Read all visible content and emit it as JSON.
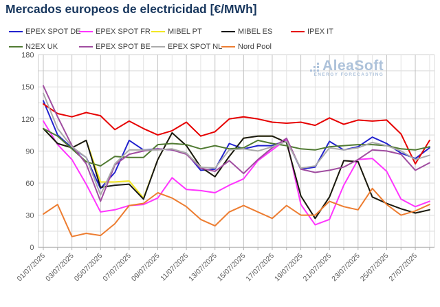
{
  "title": "Mercados europeos de electricidad [€/MWh]",
  "watermark": {
    "brand": "AleaSoft",
    "tagline": "ENERGY FORECASTING"
  },
  "chart_data": {
    "type": "line",
    "title": "Mercados europeos de electricidad [€/MWh]",
    "xlabel": "",
    "ylabel": "",
    "ylim": [
      0,
      180
    ],
    "y_ticks": [
      0,
      30,
      60,
      90,
      120,
      150,
      180
    ],
    "grid": true,
    "legend_position": "top",
    "x": [
      "01/07/2025",
      "02/07/2025",
      "03/07/2025",
      "04/07/2025",
      "05/07/2025",
      "06/07/2025",
      "07/07/2025",
      "08/07/2025",
      "09/07/2025",
      "10/07/2025",
      "11/07/2025",
      "12/07/2025",
      "13/07/2025",
      "14/07/2025",
      "15/07/2025",
      "16/07/2025",
      "17/07/2025",
      "18/07/2025",
      "19/07/2025",
      "20/07/2025",
      "21/07/2025",
      "22/07/2025",
      "23/07/2025",
      "24/07/2025",
      "25/07/2025",
      "26/07/2025",
      "27/07/2025",
      "28/07/2025"
    ],
    "x_tick_labels": [
      "01/07/2025",
      "03/07/2025",
      "05/07/2025",
      "07/07/2025",
      "09/07/2025",
      "11/07/2025",
      "13/07/2025",
      "15/07/2025",
      "17/07/2025",
      "19/07/2025",
      "21/07/2025",
      "23/07/2025",
      "25/07/2025",
      "27/07/2025"
    ],
    "series": [
      {
        "name": "EPEX SPOT DE",
        "color": "#2222CE",
        "values": [
          137,
          105,
          93,
          84,
          55,
          70,
          100,
          91,
          92,
          91,
          88,
          72,
          73,
          97,
          92,
          95,
          95,
          100,
          73,
          75,
          99,
          91,
          94,
          103,
          97,
          88,
          83,
          93
        ]
      },
      {
        "name": "EPEX SPOT FR",
        "color": "#FF35FF",
        "values": [
          118,
          96,
          82,
          59,
          33,
          35,
          39,
          40,
          46,
          65,
          54,
          53,
          51,
          58,
          64,
          81,
          91,
          101,
          40,
          21,
          26,
          58,
          82,
          83,
          71,
          45,
          38,
          43
        ]
      },
      {
        "name": "MIBEL PT",
        "color": "#F2E723",
        "values": [
          111,
          97,
          93,
          100,
          61,
          61,
          62,
          46,
          82,
          107,
          95,
          75,
          66,
          85,
          102,
          104,
          104,
          98,
          48,
          27,
          47,
          81,
          80,
          47,
          41,
          36,
          32,
          35
        ]
      },
      {
        "name": "MIBEL ES",
        "color": "#171717",
        "values": [
          111,
          97,
          93,
          100,
          56,
          58,
          59,
          45,
          82,
          107,
          95,
          75,
          66,
          85,
          102,
          104,
          104,
          98,
          48,
          27,
          47,
          81,
          80,
          47,
          41,
          36,
          32,
          35
        ]
      },
      {
        "name": "IPEX IT",
        "color": "#E60000",
        "values": [
          134,
          125,
          122,
          126,
          123,
          110,
          118,
          111,
          105,
          109,
          117,
          104,
          108,
          120,
          122,
          120,
          117,
          116,
          117,
          114,
          121,
          115,
          119,
          118,
          119,
          106,
          78,
          100
        ]
      },
      {
        "name": "N2EX UK",
        "color": "#507A32",
        "values": [
          111,
          104,
          92,
          80,
          76,
          85,
          84,
          84,
          96,
          97,
          96,
          92,
          95,
          92,
          93,
          100,
          97,
          95,
          92,
          91,
          94,
          95,
          96,
          96,
          95,
          92,
          91,
          94
        ]
      },
      {
        "name": "EPEX SPOT BE",
        "color": "#A04DA0",
        "values": [
          151,
          122,
          95,
          78,
          43,
          77,
          87,
          90,
          92,
          91,
          87,
          74,
          71,
          81,
          69,
          82,
          93,
          102,
          73,
          70,
          72,
          75,
          82,
          91,
          90,
          87,
          72,
          79
        ]
      },
      {
        "name": "EPEX SPOT NL",
        "color": "#ABABAB",
        "values": [
          144,
          111,
          94,
          84,
          49,
          78,
          91,
          91,
          91,
          92,
          88,
          75,
          74,
          91,
          92,
          90,
          94,
          99,
          74,
          76,
          93,
          91,
          93,
          98,
          95,
          90,
          82,
          86
        ]
      },
      {
        "name": "Nord Pool",
        "color": "#ED7D31",
        "values": [
          31,
          40,
          10,
          13,
          11,
          22,
          39,
          41,
          51,
          46,
          38,
          26,
          20,
          33,
          39,
          33,
          27,
          39,
          30,
          30,
          43,
          38,
          35,
          55,
          40,
          30,
          34,
          40
        ]
      }
    ]
  }
}
